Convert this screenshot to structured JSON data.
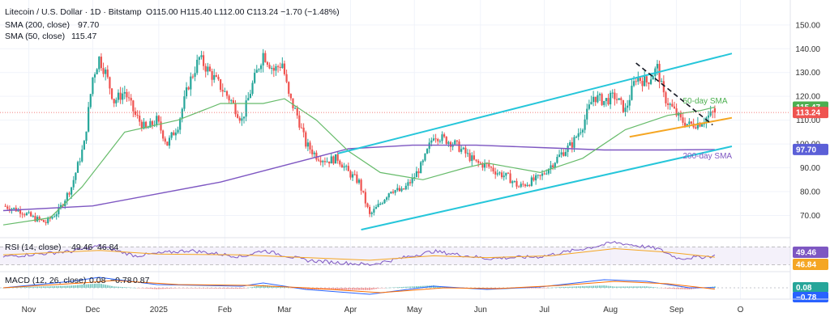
{
  "chart_data": {
    "type": "candlestick",
    "header": {
      "symbol": "Litecoin / U.S. Dollar · 1D · Bitstamp",
      "ohlc": "O115.00  H115.40  L112.00  C113.24  −1.70 (−1.48%)",
      "sma200_label": "SMA (200, close)",
      "sma200_value": "97.70",
      "sma50_label": "SMA (50, close)",
      "sma50_value": "115.47"
    },
    "y_ticks": [
      "150.00",
      "140.00",
      "130.00",
      "120.00",
      "110.00",
      "100.00",
      "90.00",
      "80.00",
      "70.00"
    ],
    "y_tick_values": [
      150,
      140,
      130,
      120,
      110,
      100,
      90,
      80,
      70
    ],
    "ylim": [
      62,
      153
    ],
    "x_ticks": [
      "Nov",
      "Dec",
      "2025",
      "Feb",
      "Mar",
      "Apr",
      "May",
      "Jun",
      "Jul",
      "Aug",
      "Sep",
      "O"
    ],
    "x_tick_days": [
      0,
      30,
      61,
      92,
      120,
      151,
      181,
      212,
      242,
      273,
      304,
      334
    ],
    "xlim": [
      -12,
      346
    ],
    "close_path": [
      [
        -12,
        74
      ],
      [
        -4,
        72
      ],
      [
        2,
        69
      ],
      [
        8,
        67
      ],
      [
        14,
        72
      ],
      [
        20,
        82
      ],
      [
        26,
        100
      ],
      [
        30,
        128
      ],
      [
        33,
        136
      ],
      [
        36,
        130
      ],
      [
        40,
        118
      ],
      [
        45,
        122
      ],
      [
        50,
        112
      ],
      [
        55,
        106
      ],
      [
        60,
        110
      ],
      [
        65,
        100
      ],
      [
        70,
        108
      ],
      [
        75,
        125
      ],
      [
        80,
        136
      ],
      [
        85,
        130
      ],
      [
        90,
        124
      ],
      [
        95,
        118
      ],
      [
        100,
        110
      ],
      [
        105,
        125
      ],
      [
        110,
        138
      ],
      [
        115,
        131
      ],
      [
        119,
        134
      ],
      [
        122,
        120
      ],
      [
        126,
        112
      ],
      [
        130,
        100
      ],
      [
        135,
        95
      ],
      [
        140,
        93
      ],
      [
        145,
        94
      ],
      [
        150,
        88
      ],
      [
        155,
        84
      ],
      [
        160,
        70
      ],
      [
        165,
        75
      ],
      [
        170,
        81
      ],
      [
        175,
        80
      ],
      [
        180,
        85
      ],
      [
        185,
        92
      ],
      [
        190,
        104
      ],
      [
        195,
        102
      ],
      [
        200,
        100
      ],
      [
        205,
        96
      ],
      [
        210,
        92
      ],
      [
        215,
        91
      ],
      [
        220,
        88
      ],
      [
        225,
        86
      ],
      [
        230,
        82
      ],
      [
        235,
        84
      ],
      [
        240,
        86
      ],
      [
        245,
        91
      ],
      [
        250,
        96
      ],
      [
        255,
        100
      ],
      [
        260,
        108
      ],
      [
        265,
        120
      ],
      [
        270,
        118
      ],
      [
        275,
        120
      ],
      [
        280,
        114
      ],
      [
        285,
        128
      ],
      [
        290,
        126
      ],
      [
        295,
        132
      ],
      [
        298,
        120
      ],
      [
        302,
        115
      ],
      [
        306,
        110
      ],
      [
        310,
        108
      ],
      [
        315,
        109
      ],
      [
        318,
        111
      ],
      [
        322,
        113.24
      ]
    ],
    "sma200_path": [
      [
        -12,
        72
      ],
      [
        30,
        74
      ],
      [
        60,
        79
      ],
      [
        90,
        84
      ],
      [
        120,
        91
      ],
      [
        150,
        98
      ],
      [
        180,
        99.5
      ],
      [
        210,
        99.5
      ],
      [
        240,
        98.5
      ],
      [
        270,
        97.5
      ],
      [
        300,
        97.5
      ],
      [
        322,
        97.7
      ]
    ],
    "sma50_path": [
      [
        -12,
        66
      ],
      [
        10,
        69
      ],
      [
        25,
        82
      ],
      [
        45,
        105
      ],
      [
        70,
        110
      ],
      [
        90,
        117
      ],
      [
        110,
        117
      ],
      [
        120,
        119
      ],
      [
        135,
        110
      ],
      [
        150,
        97
      ],
      [
        165,
        88
      ],
      [
        185,
        85
      ],
      [
        205,
        90
      ],
      [
        215,
        92
      ],
      [
        240,
        88
      ],
      [
        260,
        94
      ],
      [
        280,
        106
      ],
      [
        300,
        112
      ],
      [
        315,
        114
      ],
      [
        322,
        115.47
      ]
    ],
    "trendlines": [
      {
        "type": "channel-top",
        "from": [
          145,
          96
        ],
        "to": [
          330,
          138
        ]
      },
      {
        "type": "channel-bottom",
        "from": [
          156,
          64
        ],
        "to": [
          330,
          99
        ]
      },
      {
        "type": "support-orange",
        "from": [
          282,
          103
        ],
        "to": [
          330,
          111
        ]
      },
      {
        "type": "resistance-dashed",
        "from": [
          285,
          134
        ],
        "to": [
          321,
          108
        ]
      }
    ],
    "annotations": [
      {
        "text": "50-day SMA",
        "x": 307,
        "y": 117,
        "color": "#4caf50"
      },
      {
        "text": "200-day SMA",
        "x": 307,
        "y": 94,
        "color": "#7e57c2"
      }
    ],
    "price_badges": [
      {
        "value": "115.47",
        "y": 115.47,
        "color": "#4caf50"
      },
      {
        "value": "113.24",
        "y": 113.24,
        "color": "#ef5350"
      },
      {
        "value": "97.70",
        "y": 97.7,
        "color": "#5b5fd7"
      }
    ],
    "rsi": {
      "label": "RSI (14, close)",
      "value1": "49.46",
      "value2": "46.84",
      "badges": [
        "49.46",
        "46.84"
      ],
      "ylim": [
        20,
        85
      ],
      "bands": [
        70,
        30
      ],
      "rsi_path": [
        [
          -12,
          48
        ],
        [
          20,
          60
        ],
        [
          33,
          72
        ],
        [
          50,
          50
        ],
        [
          75,
          62
        ],
        [
          100,
          48
        ],
        [
          110,
          62
        ],
        [
          130,
          40
        ],
        [
          160,
          30
        ],
        [
          190,
          60
        ],
        [
          215,
          44
        ],
        [
          240,
          48
        ],
        [
          265,
          70
        ],
        [
          275,
          80
        ],
        [
          295,
          66
        ],
        [
          305,
          44
        ],
        [
          322,
          49.46
        ]
      ],
      "ma_path": [
        [
          -12,
          52
        ],
        [
          33,
          62
        ],
        [
          60,
          54
        ],
        [
          100,
          52
        ],
        [
          130,
          46
        ],
        [
          160,
          40
        ],
        [
          190,
          50
        ],
        [
          215,
          46
        ],
        [
          245,
          50
        ],
        [
          275,
          66
        ],
        [
          300,
          58
        ],
        [
          322,
          46.84
        ]
      ]
    },
    "macd": {
      "label": "MACD (12, 26, close)",
      "value1": "0.08",
      "value2": "−0.78",
      "value3": "0.87",
      "badges": [
        "0.08",
        "−0.78"
      ],
      "ylim": [
        -6,
        8
      ],
      "macd_path": [
        [
          -12,
          0
        ],
        [
          20,
          4
        ],
        [
          33,
          6.5
        ],
        [
          60,
          2
        ],
        [
          100,
          1
        ],
        [
          110,
          3
        ],
        [
          130,
          -1
        ],
        [
          160,
          -4
        ],
        [
          190,
          1
        ],
        [
          215,
          -1
        ],
        [
          240,
          0.5
        ],
        [
          270,
          5
        ],
        [
          290,
          4
        ],
        [
          310,
          0
        ],
        [
          322,
          0.08
        ]
      ],
      "signal_path": [
        [
          -12,
          0
        ],
        [
          25,
          3
        ],
        [
          40,
          4.5
        ],
        [
          70,
          2
        ],
        [
          105,
          1.5
        ],
        [
          130,
          0
        ],
        [
          165,
          -3
        ],
        [
          195,
          0
        ],
        [
          220,
          -0.5
        ],
        [
          250,
          1.5
        ],
        [
          275,
          4
        ],
        [
          300,
          2.5
        ],
        [
          322,
          -0.78
        ]
      ]
    }
  }
}
